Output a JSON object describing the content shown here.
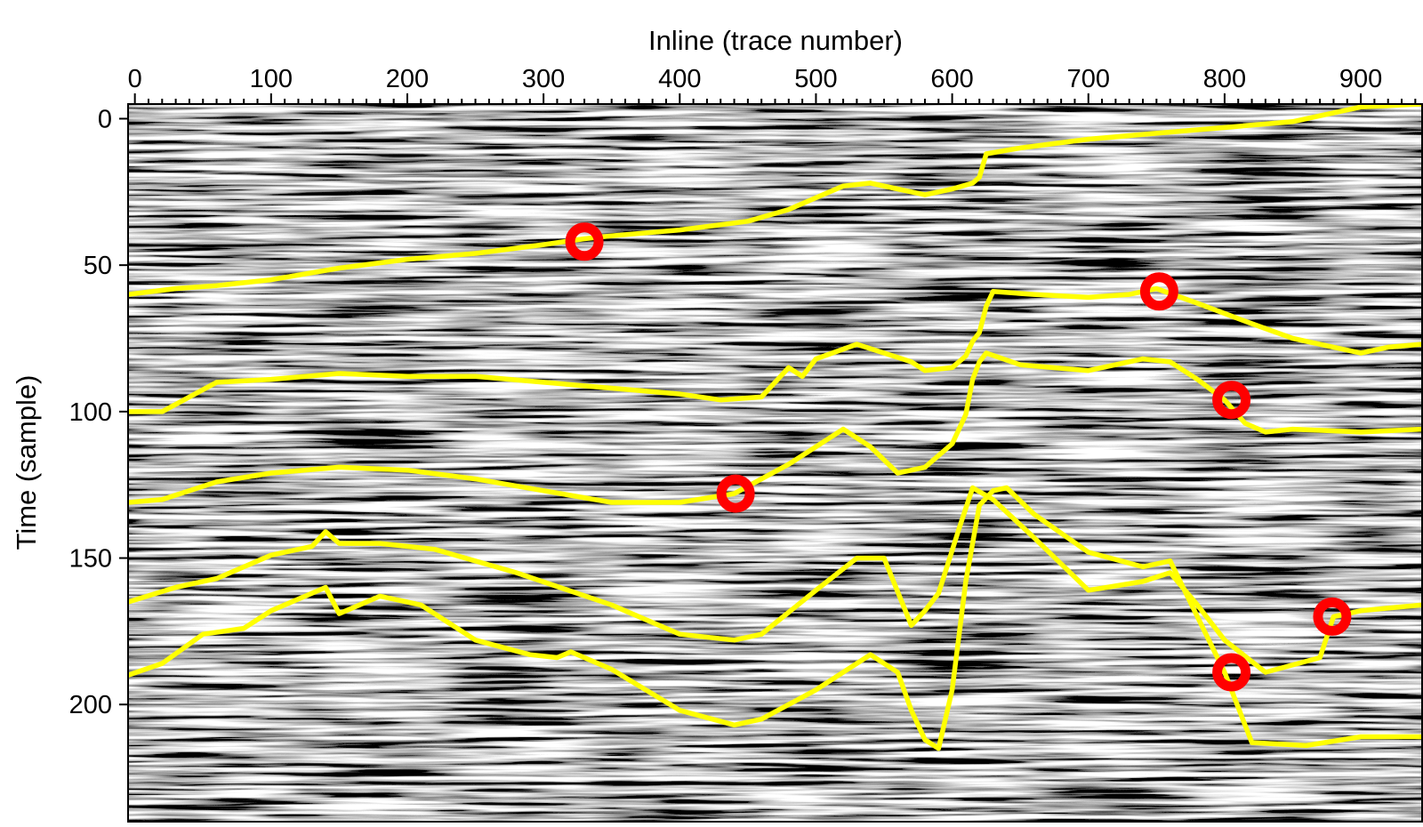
{
  "chart_data": {
    "type": "seismic-section",
    "xlabel": "Inline (trace number)",
    "ylabel": "Time (sample)",
    "xlim": [
      -5,
      945
    ],
    "ylim": [
      -5,
      240
    ],
    "x_axis_position": "top",
    "y_inverted": true,
    "x_ticks": [
      0,
      100,
      200,
      300,
      400,
      500,
      600,
      700,
      800,
      900
    ],
    "y_ticks": [
      0,
      50,
      100,
      150,
      200
    ],
    "colors": {
      "horizon": "#ffff00",
      "marker": "#ff0000",
      "background_low": "#000000",
      "background_high": "#ffffff"
    },
    "horizons": [
      {
        "points": [
          [
            -5,
            60
          ],
          [
            30,
            58
          ],
          [
            60,
            57
          ],
          [
            100,
            55
          ],
          [
            150,
            51
          ],
          [
            200,
            48
          ],
          [
            250,
            46
          ],
          [
            300,
            43
          ],
          [
            330,
            41
          ],
          [
            350,
            40
          ],
          [
            400,
            38
          ],
          [
            450,
            35
          ],
          [
            480,
            31
          ],
          [
            500,
            27
          ],
          [
            520,
            23
          ],
          [
            540,
            22
          ],
          [
            560,
            24
          ],
          [
            580,
            26
          ],
          [
            600,
            24
          ],
          [
            615,
            22
          ],
          [
            620,
            20
          ],
          [
            625,
            12
          ],
          [
            650,
            10
          ],
          [
            700,
            7
          ],
          [
            750,
            5
          ],
          [
            800,
            3
          ],
          [
            850,
            1
          ],
          [
            900,
            -4
          ],
          [
            945,
            -5
          ]
        ]
      },
      {
        "points": [
          [
            -5,
            100
          ],
          [
            20,
            100
          ],
          [
            40,
            95
          ],
          [
            60,
            90
          ],
          [
            100,
            89
          ],
          [
            150,
            87
          ],
          [
            200,
            88
          ],
          [
            250,
            88
          ],
          [
            300,
            90
          ],
          [
            350,
            92
          ],
          [
            400,
            94
          ],
          [
            430,
            96
          ],
          [
            460,
            95
          ],
          [
            480,
            85
          ],
          [
            490,
            88
          ],
          [
            500,
            82
          ],
          [
            530,
            77
          ],
          [
            550,
            80
          ],
          [
            570,
            83
          ],
          [
            580,
            86
          ],
          [
            600,
            85
          ],
          [
            610,
            81
          ],
          [
            615,
            76
          ],
          [
            620,
            73
          ],
          [
            625,
            64
          ],
          [
            630,
            59
          ],
          [
            660,
            60
          ],
          [
            700,
            61
          ],
          [
            730,
            60
          ],
          [
            750,
            58
          ],
          [
            780,
            63
          ],
          [
            820,
            70
          ],
          [
            850,
            75
          ],
          [
            880,
            78
          ],
          [
            900,
            80
          ],
          [
            920,
            78
          ],
          [
            945,
            77
          ]
        ]
      },
      {
        "points": [
          [
            -5,
            131
          ],
          [
            20,
            130
          ],
          [
            60,
            124
          ],
          [
            100,
            121
          ],
          [
            150,
            119
          ],
          [
            200,
            120
          ],
          [
            250,
            123
          ],
          [
            300,
            127
          ],
          [
            350,
            131
          ],
          [
            400,
            131
          ],
          [
            440,
            128
          ],
          [
            480,
            118
          ],
          [
            500,
            112
          ],
          [
            520,
            106
          ],
          [
            540,
            112
          ],
          [
            560,
            121
          ],
          [
            580,
            119
          ],
          [
            600,
            111
          ],
          [
            610,
            101
          ],
          [
            615,
            89
          ],
          [
            620,
            83
          ],
          [
            625,
            80
          ],
          [
            650,
            84
          ],
          [
            700,
            86
          ],
          [
            740,
            82
          ],
          [
            760,
            83
          ],
          [
            780,
            89
          ],
          [
            800,
            96
          ],
          [
            815,
            104
          ],
          [
            830,
            107
          ],
          [
            850,
            106
          ],
          [
            900,
            107
          ],
          [
            945,
            106
          ]
        ]
      },
      {
        "points": [
          [
            -5,
            165
          ],
          [
            30,
            160
          ],
          [
            60,
            157
          ],
          [
            100,
            149
          ],
          [
            130,
            146
          ],
          [
            140,
            141
          ],
          [
            150,
            145
          ],
          [
            180,
            145
          ],
          [
            220,
            147
          ],
          [
            280,
            155
          ],
          [
            350,
            166
          ],
          [
            400,
            176
          ],
          [
            440,
            178
          ],
          [
            460,
            176
          ],
          [
            500,
            161
          ],
          [
            530,
            150
          ],
          [
            550,
            150
          ],
          [
            570,
            173
          ],
          [
            580,
            168
          ],
          [
            590,
            162
          ],
          [
            605,
            140
          ],
          [
            615,
            126
          ],
          [
            630,
            130
          ],
          [
            660,
            143
          ],
          [
            680,
            152
          ],
          [
            700,
            161
          ],
          [
            740,
            158
          ],
          [
            760,
            155
          ],
          [
            780,
            166
          ],
          [
            800,
            178
          ],
          [
            830,
            189
          ],
          [
            870,
            184
          ],
          [
            880,
            170
          ],
          [
            900,
            168
          ],
          [
            945,
            166
          ]
        ]
      },
      {
        "points": [
          [
            -5,
            190
          ],
          [
            20,
            186
          ],
          [
            50,
            176
          ],
          [
            80,
            174
          ],
          [
            100,
            168
          ],
          [
            130,
            162
          ],
          [
            140,
            160
          ],
          [
            150,
            169
          ],
          [
            180,
            163
          ],
          [
            210,
            166
          ],
          [
            250,
            178
          ],
          [
            290,
            183
          ],
          [
            310,
            184
          ],
          [
            320,
            182
          ],
          [
            350,
            188
          ],
          [
            400,
            202
          ],
          [
            440,
            207
          ],
          [
            460,
            205
          ],
          [
            500,
            195
          ],
          [
            540,
            183
          ],
          [
            560,
            189
          ],
          [
            570,
            202
          ],
          [
            580,
            212
          ],
          [
            590,
            215
          ],
          [
            600,
            195
          ],
          [
            610,
            158
          ],
          [
            620,
            132
          ],
          [
            630,
            127
          ],
          [
            640,
            126
          ],
          [
            660,
            135
          ],
          [
            700,
            148
          ],
          [
            740,
            153
          ],
          [
            760,
            151
          ],
          [
            780,
            170
          ],
          [
            800,
            189
          ],
          [
            820,
            213
          ],
          [
            860,
            214
          ],
          [
            900,
            211
          ],
          [
            945,
            211
          ]
        ]
      }
    ],
    "markers": [
      {
        "x": 330,
        "y": 42
      },
      {
        "x": 752,
        "y": 59
      },
      {
        "x": 805,
        "y": 96
      },
      {
        "x": 441,
        "y": 128
      },
      {
        "x": 879,
        "y": 170
      },
      {
        "x": 805,
        "y": 189
      }
    ]
  }
}
